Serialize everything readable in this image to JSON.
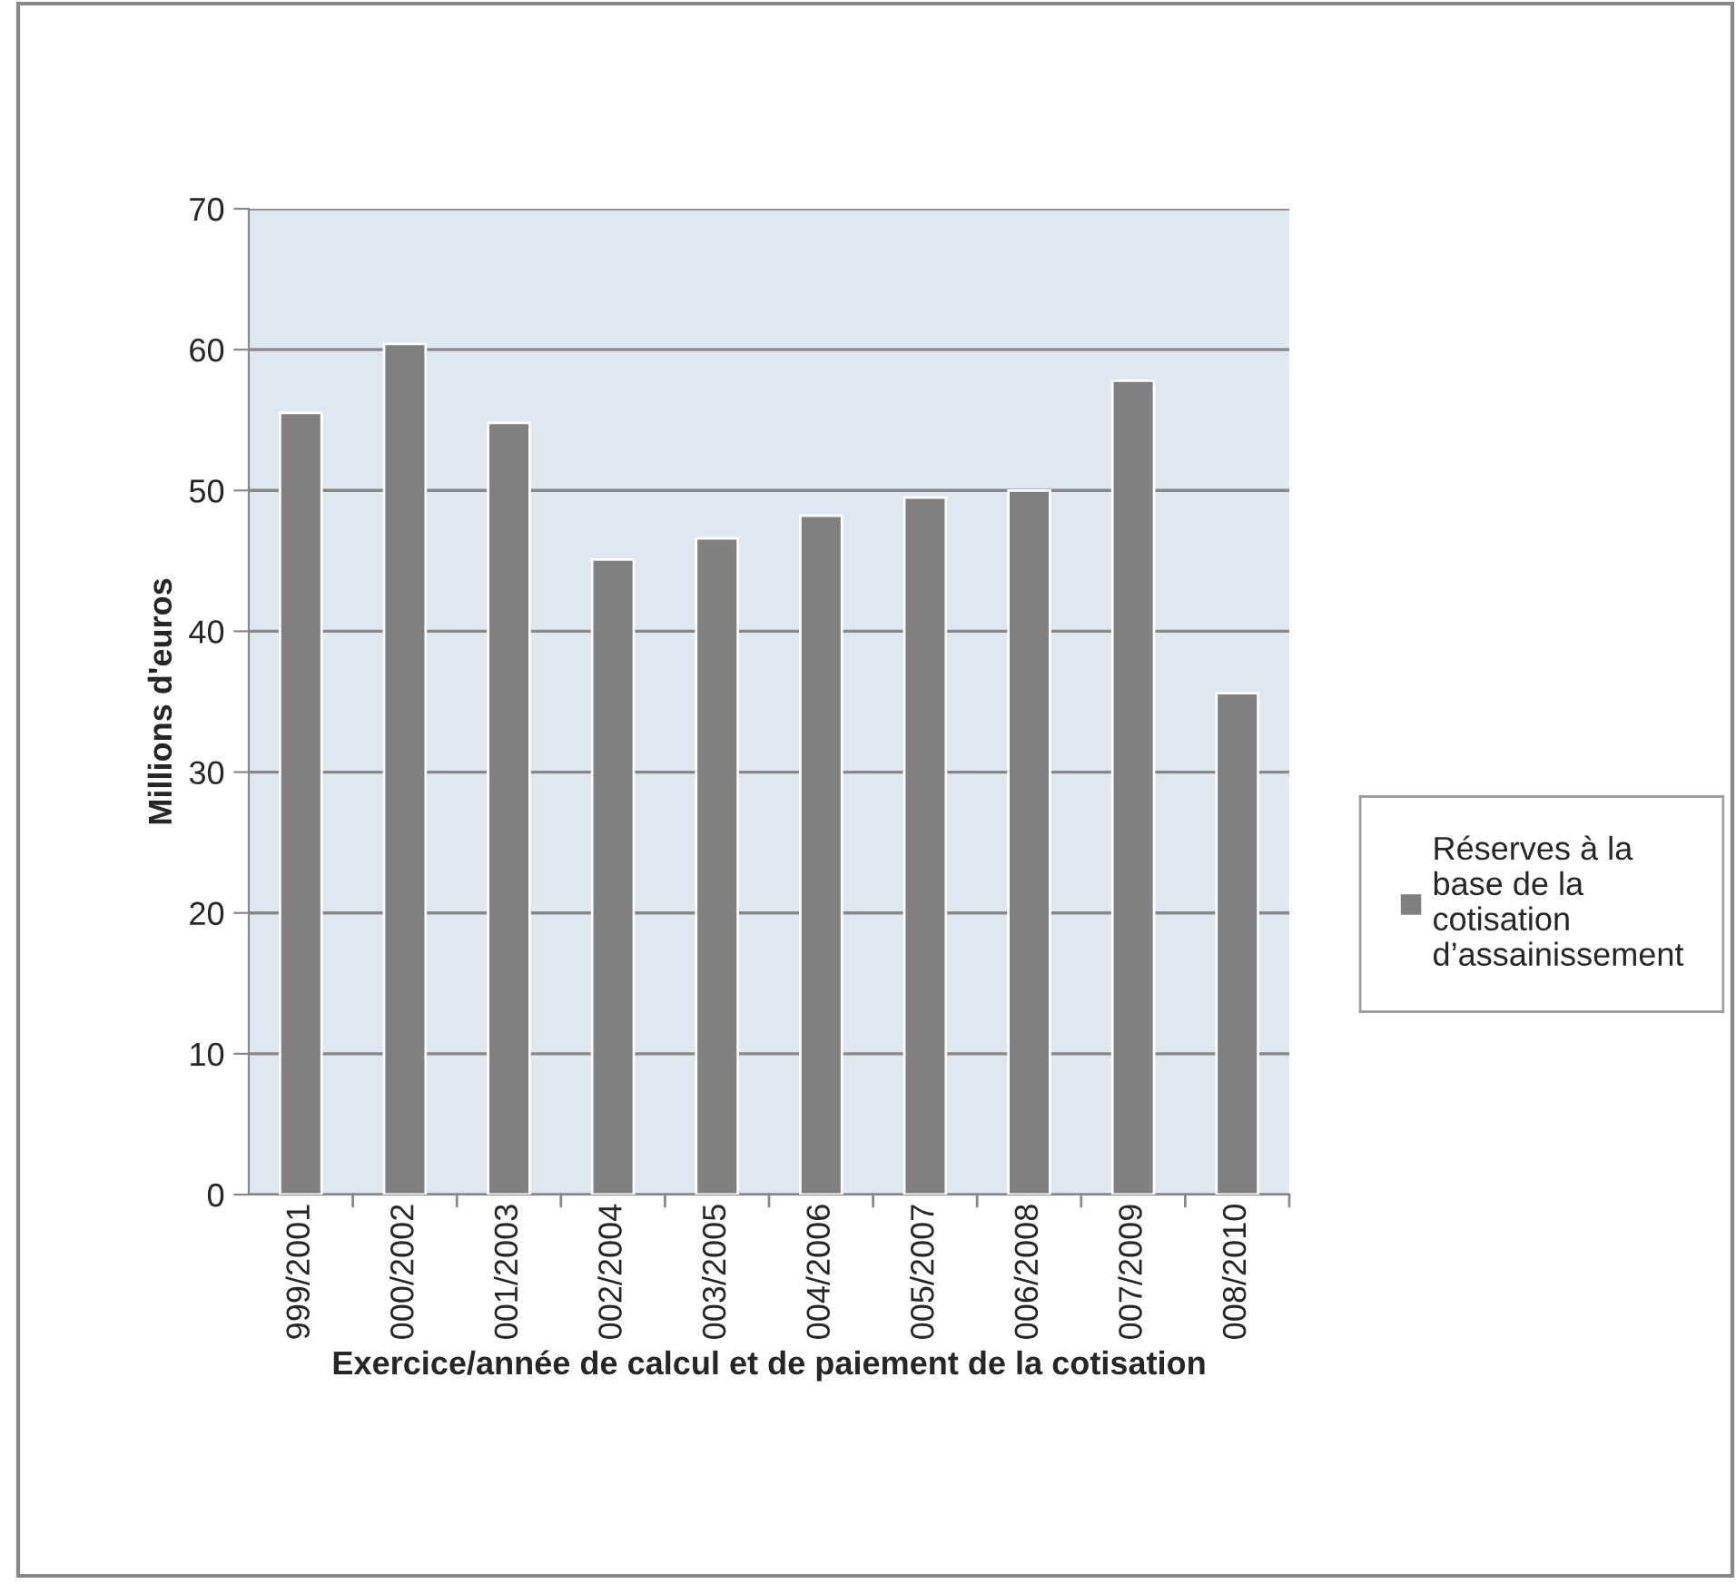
{
  "chart_data": {
    "type": "bar",
    "xlabel": "Exercice/année de calcul et de paiement de la cotisation",
    "ylabel": "Millions d'euros",
    "categories": [
      "999/2001",
      "000/2002",
      "001/2003",
      "002/2004",
      "003/2005",
      "004/2006",
      "005/2007",
      "006/2008",
      "007/2009",
      "008/2010"
    ],
    "series": [
      {
        "name": "Réserves à la base de la cotisation d’assainissement",
        "color": "#808080",
        "values": [
          55.5,
          60.4,
          54.8,
          45.1,
          46.6,
          48.2,
          49.5,
          50.0,
          57.8,
          35.6
        ]
      }
    ],
    "ylim": [
      0,
      70
    ],
    "yticks": [
      0,
      10,
      20,
      30,
      40,
      50,
      60,
      70
    ],
    "grid": "y",
    "legend": "right"
  }
}
